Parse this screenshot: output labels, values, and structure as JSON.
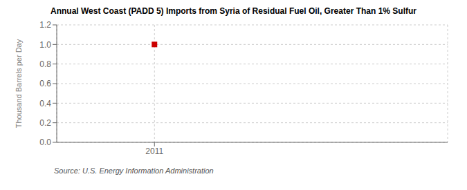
{
  "chart_data": {
    "type": "scatter",
    "title": "Annual West Coast (PADD 5) Imports from Syria of Residual Fuel Oil, Greater Than 1% Sulfur",
    "y_label": "Thousand Barrels per Day",
    "source": "Source: U.S. Energy Information Administration",
    "x": [
      2011
    ],
    "values": [
      1.0
    ],
    "color": "#cc0000",
    "marker": "square",
    "xlim": [
      2010.5,
      2012.5
    ],
    "xticks": [
      2011
    ],
    "ylim": [
      0.0,
      1.2
    ],
    "yticks": [
      {
        "value": 0,
        "label": "0.0"
      },
      0.2,
      0.4,
      0.6,
      0.8,
      {
        "value": 1,
        "label": "1.0"
      },
      1.2
    ],
    "grid": true
  }
}
